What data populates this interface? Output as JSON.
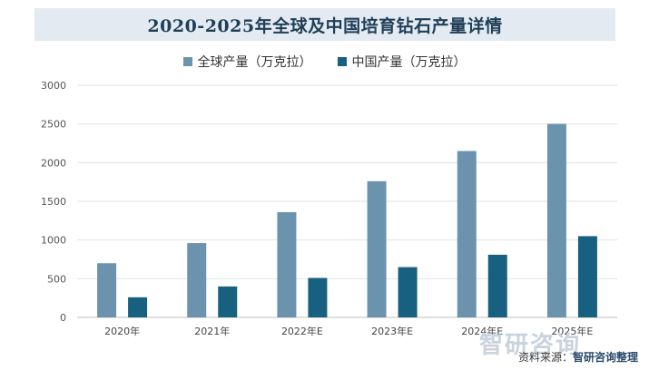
{
  "chart_data": {
    "type": "bar",
    "title": "2020-2025年全球及中国培育钻石产量详情",
    "categories": [
      "2020年",
      "2021年",
      "2022年E",
      "2023年E",
      "2024年E",
      "2025年E"
    ],
    "series": [
      {
        "name": "全球产量（万克拉）",
        "values": [
          700,
          960,
          1360,
          1760,
          2150,
          2500
        ],
        "color": "#6b93ad"
      },
      {
        "name": "中国产量（万克拉）",
        "values": [
          260,
          400,
          510,
          650,
          810,
          1050
        ],
        "color": "#17607f"
      }
    ],
    "ylim": [
      0,
      3000
    ],
    "yticks": [
      0,
      500,
      1000,
      1500,
      2000,
      2500,
      3000
    ],
    "grid": true,
    "legend_position": "top-center"
  },
  "source": {
    "label": "资料来源：",
    "text": "智研咨询整理"
  },
  "watermark_logo": "智研咨询"
}
